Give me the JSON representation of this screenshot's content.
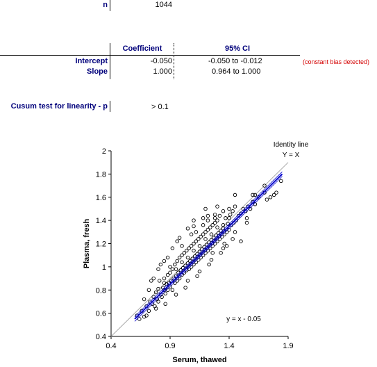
{
  "summary": {
    "n_label": "n",
    "n_value": "1044"
  },
  "regression_table": {
    "col_coefficient": "Coefficient",
    "col_ci": "95% CI",
    "rows": [
      {
        "label": "Intercept",
        "coefficient": "-0.050",
        "ci": "-0.050  to -0.012"
      },
      {
        "label": "Slope",
        "coefficient": "1.000",
        "ci": "0.964  to 1.000"
      }
    ],
    "bias_note": "(constant bias detected)"
  },
  "cusum": {
    "label": "Cusum test for linearity - p",
    "value": "> 0.1"
  },
  "chart_data": {
    "type": "scatter",
    "xlabel": "Serum, thawed",
    "ylabel": "Plasma, fresh",
    "xlim": [
      0.4,
      1.9
    ],
    "ylim": [
      0.4,
      2.0
    ],
    "xticks": [
      "0.4",
      "0.9",
      "1.4",
      "1.9"
    ],
    "yticks": [
      "0.4",
      "0.6",
      "0.8",
      "1",
      "1.2",
      "1.4",
      "1.6",
      "1.8",
      "2"
    ],
    "identity_label_1": "Identity line",
    "identity_label_2": "Y = X",
    "equation": "y = x - 0.05",
    "regression": {
      "intercept": -0.05,
      "slope": 1.0,
      "ci_low": [
        0.6,
        1.85
      ],
      "ci_offset": 0.02
    },
    "colors": {
      "regression": "#0000cc",
      "identity": "#aaaaaa",
      "points": "#000000"
    },
    "points": [
      [
        0.62,
        0.58
      ],
      [
        0.64,
        0.55
      ],
      [
        0.66,
        0.62
      ],
      [
        0.68,
        0.57
      ],
      [
        0.7,
        0.66
      ],
      [
        0.72,
        0.62
      ],
      [
        0.73,
        0.7
      ],
      [
        0.75,
        0.68
      ],
      [
        0.76,
        0.74
      ],
      [
        0.77,
        0.66
      ],
      [
        0.78,
        0.78
      ],
      [
        0.79,
        0.72
      ],
      [
        0.8,
        0.81
      ],
      [
        0.8,
        0.7
      ],
      [
        0.81,
        0.88
      ],
      [
        0.82,
        0.76
      ],
      [
        0.83,
        0.74
      ],
      [
        0.84,
        0.82
      ],
      [
        0.85,
        0.8
      ],
      [
        0.85,
        0.9
      ],
      [
        0.86,
        0.77
      ],
      [
        0.87,
        0.85
      ],
      [
        0.88,
        0.8
      ],
      [
        0.88,
        0.93
      ],
      [
        0.89,
        0.86
      ],
      [
        0.9,
        0.83
      ],
      [
        0.9,
        0.95
      ],
      [
        0.91,
        0.88
      ],
      [
        0.92,
        0.8
      ],
      [
        0.92,
        0.98
      ],
      [
        0.93,
        0.9
      ],
      [
        0.94,
        0.86
      ],
      [
        0.94,
        1.02
      ],
      [
        0.95,
        0.92
      ],
      [
        0.96,
        0.88
      ],
      [
        0.96,
        1.05
      ],
      [
        0.97,
        0.95
      ],
      [
        0.98,
        0.9
      ],
      [
        0.98,
        1.08
      ],
      [
        0.99,
        0.97
      ],
      [
        1.0,
        0.93
      ],
      [
        1.0,
        1.1
      ],
      [
        1.01,
        0.99
      ],
      [
        1.02,
        0.95
      ],
      [
        1.02,
        1.12
      ],
      [
        1.03,
        1.01
      ],
      [
        1.04,
        0.97
      ],
      [
        1.04,
        1.14
      ],
      [
        1.05,
        1.03
      ],
      [
        1.06,
        0.98
      ],
      [
        1.06,
        1.16
      ],
      [
        1.07,
        1.05
      ],
      [
        1.08,
        1.0
      ],
      [
        1.08,
        1.18
      ],
      [
        1.09,
        1.07
      ],
      [
        1.1,
        1.02
      ],
      [
        1.1,
        1.2
      ],
      [
        1.11,
        1.09
      ],
      [
        1.12,
        1.04
      ],
      [
        1.12,
        1.22
      ],
      [
        1.13,
        1.11
      ],
      [
        1.14,
        1.06
      ],
      [
        1.14,
        1.24
      ],
      [
        1.15,
        1.13
      ],
      [
        1.16,
        1.08
      ],
      [
        1.16,
        1.26
      ],
      [
        1.17,
        1.15
      ],
      [
        1.18,
        1.1
      ],
      [
        1.18,
        1.28
      ],
      [
        1.19,
        1.17
      ],
      [
        1.2,
        1.12
      ],
      [
        1.2,
        1.3
      ],
      [
        1.21,
        1.19
      ],
      [
        1.22,
        1.14
      ],
      [
        1.22,
        1.32
      ],
      [
        1.23,
        1.21
      ],
      [
        1.24,
        1.16
      ],
      [
        1.24,
        1.34
      ],
      [
        1.25,
        1.23
      ],
      [
        1.26,
        1.18
      ],
      [
        1.26,
        1.36
      ],
      [
        1.27,
        1.25
      ],
      [
        1.28,
        1.2
      ],
      [
        1.28,
        1.38
      ],
      [
        1.29,
        1.27
      ],
      [
        1.3,
        1.22
      ],
      [
        1.3,
        1.4
      ],
      [
        1.31,
        1.29
      ],
      [
        1.32,
        1.24
      ],
      [
        1.33,
        1.31
      ],
      [
        1.34,
        1.26
      ],
      [
        1.35,
        1.33
      ],
      [
        1.36,
        1.28
      ],
      [
        1.37,
        1.42
      ],
      [
        1.38,
        1.3
      ],
      [
        1.39,
        1.37
      ],
      [
        1.4,
        1.32
      ],
      [
        1.41,
        1.45
      ],
      [
        1.42,
        1.36
      ],
      [
        1.43,
        1.48
      ],
      [
        1.44,
        1.38
      ],
      [
        1.46,
        1.4
      ],
      [
        1.48,
        1.44
      ],
      [
        1.5,
        1.46
      ],
      [
        1.52,
        1.5
      ],
      [
        1.54,
        1.48
      ],
      [
        1.56,
        1.52
      ],
      [
        1.58,
        1.5
      ],
      [
        1.6,
        1.56
      ],
      [
        1.62,
        1.54
      ],
      [
        1.65,
        1.6
      ],
      [
        1.7,
        1.64
      ],
      [
        1.72,
        1.58
      ],
      [
        1.78,
        1.62
      ],
      [
        1.84,
        1.74
      ],
      [
        1.6,
        1.62
      ],
      [
        1.55,
        1.38
      ],
      [
        1.55,
        1.42
      ],
      [
        1.5,
        1.22
      ],
      [
        1.45,
        1.52
      ],
      [
        1.35,
        1.48
      ],
      [
        1.28,
        1.45
      ],
      [
        1.22,
        1.44
      ],
      [
        1.18,
        1.42
      ],
      [
        1.1,
        1.35
      ],
      [
        1.05,
        1.33
      ],
      [
        0.98,
        1.25
      ],
      [
        0.92,
        1.16
      ],
      [
        0.85,
        1.05
      ],
      [
        0.82,
        1.02
      ],
      [
        0.76,
        0.9
      ],
      [
        0.74,
        0.88
      ],
      [
        0.95,
        0.76
      ],
      [
        1.05,
        0.88
      ],
      [
        1.15,
        0.96
      ],
      [
        1.25,
        1.06
      ],
      [
        1.35,
        1.16
      ],
      [
        1.38,
        1.18
      ],
      [
        1.45,
        1.3
      ],
      [
        0.68,
        0.72
      ],
      [
        0.7,
        0.58
      ],
      [
        0.9,
        1.0
      ],
      [
        1.0,
        1.04
      ],
      [
        1.1,
        1.14
      ],
      [
        1.2,
        1.24
      ],
      [
        1.3,
        1.34
      ],
      [
        1.4,
        1.42
      ],
      [
        1.35,
        1.36
      ],
      [
        1.25,
        1.28
      ],
      [
        1.15,
        1.18
      ],
      [
        1.05,
        1.08
      ],
      [
        0.95,
        0.98
      ],
      [
        0.85,
        0.86
      ],
      [
        1.0,
        1.18
      ],
      [
        1.08,
        1.28
      ],
      [
        1.12,
        1.3
      ],
      [
        1.18,
        1.36
      ],
      [
        1.22,
        1.4
      ],
      [
        1.28,
        1.42
      ],
      [
        1.32,
        1.44
      ],
      [
        1.4,
        1.5
      ],
      [
        0.88,
        1.08
      ],
      [
        0.8,
        0.98
      ],
      [
        0.72,
        0.8
      ],
      [
        1.45,
        1.62
      ],
      [
        1.62,
        1.62
      ],
      [
        1.7,
        1.7
      ],
      [
        1.75,
        1.6
      ],
      [
        1.8,
        1.64
      ],
      [
        1.03,
        0.82
      ],
      [
        1.13,
        0.92
      ],
      [
        1.23,
        1.02
      ],
      [
        1.33,
        1.12
      ],
      [
        1.43,
        1.24
      ],
      [
        0.86,
        0.68
      ],
      [
        0.78,
        0.64
      ],
      [
        1.3,
        1.52
      ],
      [
        1.2,
        1.5
      ],
      [
        1.1,
        1.4
      ],
      [
        0.96,
        1.22
      ],
      [
        1.26,
        1.12
      ],
      [
        1.36,
        1.2
      ]
    ]
  }
}
